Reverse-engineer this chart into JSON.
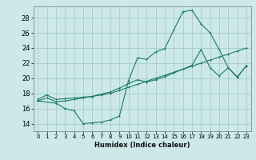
{
  "title": "",
  "xlabel": "Humidex (Indice chaleur)",
  "bg_color": "#cce8e8",
  "grid_color": "#aacccc",
  "line_color": "#1a7a6e",
  "xlim": [
    -0.5,
    23.5
  ],
  "ylim": [
    13.0,
    29.5
  ],
  "xticks": [
    0,
    1,
    2,
    3,
    4,
    5,
    6,
    7,
    8,
    9,
    10,
    11,
    12,
    13,
    14,
    15,
    16,
    17,
    18,
    19,
    20,
    21,
    22,
    23
  ],
  "yticks": [
    14,
    16,
    18,
    20,
    22,
    24,
    26,
    28
  ],
  "line1_x": [
    0,
    1,
    2,
    3,
    4,
    5,
    6,
    7,
    8,
    9,
    10,
    11,
    12,
    13,
    14,
    15,
    16,
    17,
    18,
    19,
    20,
    21,
    22,
    23
  ],
  "line1_y": [
    17.2,
    17.8,
    17.2,
    17.3,
    17.4,
    17.5,
    17.6,
    17.8,
    18.0,
    18.4,
    18.8,
    19.2,
    19.6,
    20.0,
    20.4,
    20.8,
    21.2,
    21.6,
    22.0,
    22.4,
    22.8,
    23.2,
    23.6,
    24.0
  ],
  "line2_x": [
    0,
    1,
    2,
    3,
    4,
    5,
    6,
    7,
    8,
    9,
    10,
    11,
    12,
    13,
    14,
    15,
    16,
    17,
    18,
    19,
    20,
    21,
    22,
    23
  ],
  "line2_y": [
    17.0,
    17.4,
    16.9,
    17.0,
    17.2,
    17.4,
    17.6,
    17.9,
    18.2,
    18.7,
    19.3,
    19.8,
    19.5,
    19.8,
    20.2,
    20.7,
    21.2,
    21.7,
    23.8,
    21.4,
    20.3,
    21.4,
    20.2,
    21.6
  ],
  "line3_x": [
    0,
    2,
    3,
    4,
    5,
    6,
    7,
    8,
    9,
    10,
    11,
    12,
    13,
    14,
    15,
    16,
    17,
    18,
    19,
    20,
    21,
    22,
    23
  ],
  "line3_y": [
    17.0,
    16.7,
    16.0,
    15.7,
    14.0,
    14.1,
    14.2,
    14.5,
    15.0,
    19.7,
    22.7,
    22.5,
    23.5,
    23.9,
    26.4,
    28.8,
    29.0,
    27.2,
    26.0,
    23.8,
    21.4,
    20.1,
    21.7
  ]
}
